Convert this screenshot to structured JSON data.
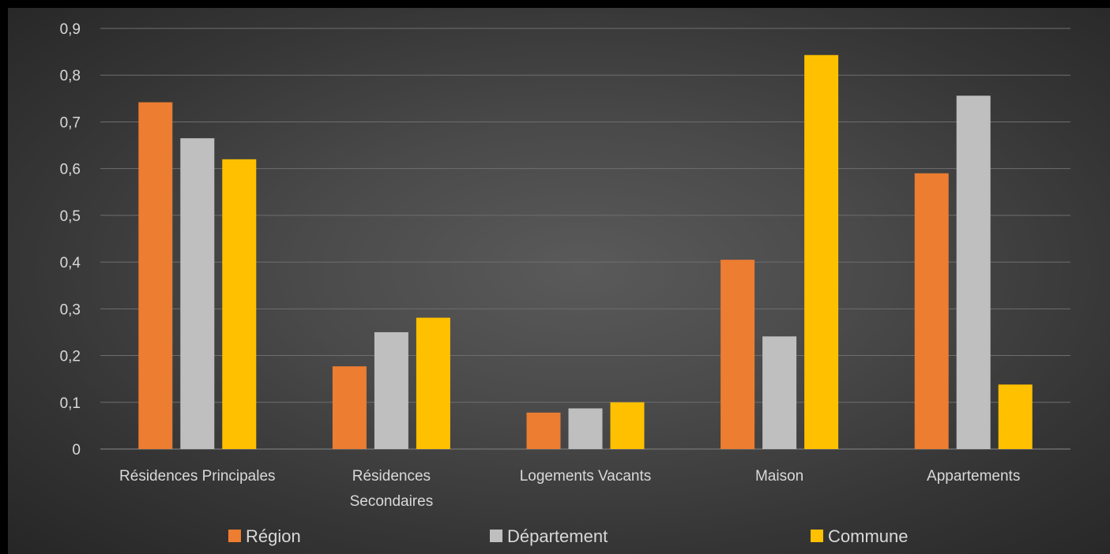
{
  "chart_data": {
    "type": "bar",
    "title": "",
    "xlabel": "",
    "ylabel": "",
    "categories": [
      [
        "Résidences Principales"
      ],
      [
        "Résidences",
        "Secondaires"
      ],
      [
        "Logements Vacants"
      ],
      [
        "Maison"
      ],
      [
        "Appartements"
      ]
    ],
    "series": [
      {
        "name": "Région",
        "color": "#ED7D31",
        "values": [
          0.742,
          0.177,
          0.078,
          0.405,
          0.59
        ]
      },
      {
        "name": "Département",
        "color": "#BFBFBF",
        "values": [
          0.665,
          0.25,
          0.087,
          0.241,
          0.756
        ]
      },
      {
        "name": "Commune",
        "color": "#FFC000",
        "values": [
          0.62,
          0.281,
          0.1,
          0.843,
          0.138
        ]
      }
    ],
    "ylim": [
      0,
      0.9
    ],
    "yticks": [
      "0",
      "0,1",
      "0,2",
      "0,3",
      "0,4",
      "0,5",
      "0,6",
      "0,7",
      "0,8",
      "0,9"
    ],
    "grid": true,
    "legend_position": "bottom",
    "gridline_color": "#6e6e6e"
  }
}
